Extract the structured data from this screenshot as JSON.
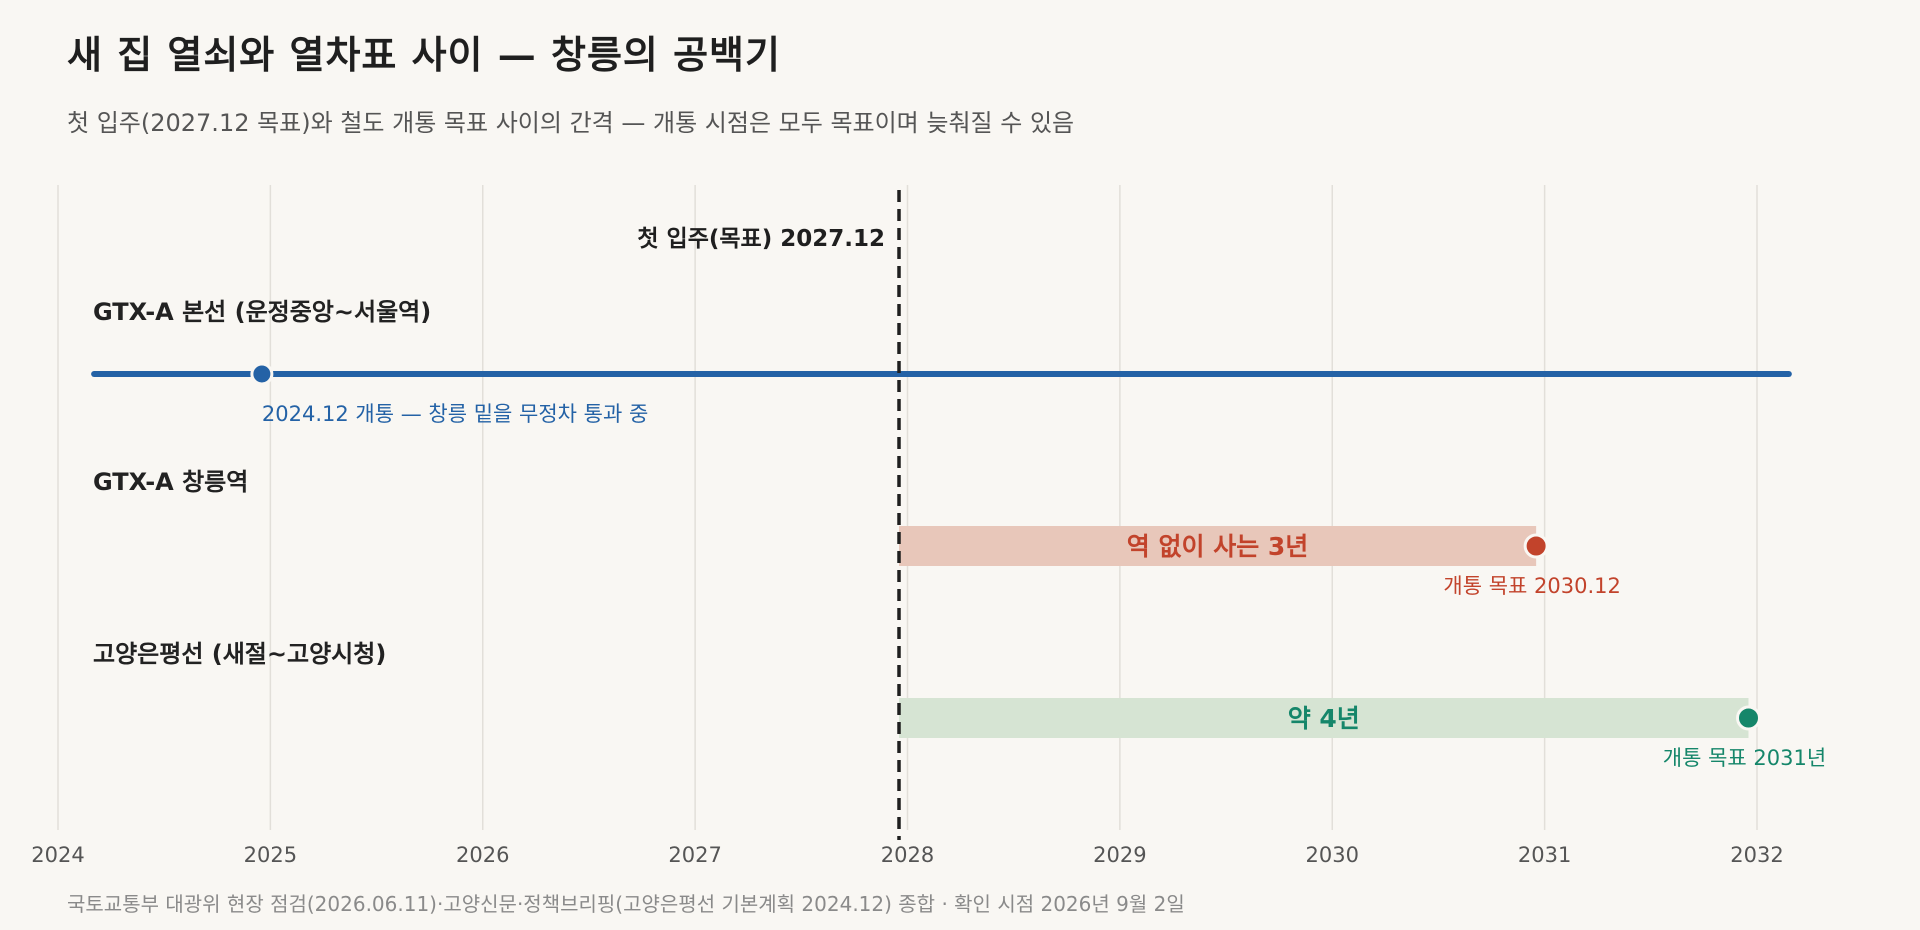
{
  "title": "새 집 열쇠와 열차표 사이 — 창릉의 공백기",
  "subtitle": "첫 입주(2027.12 목표)와 철도 개통 목표 사이의 간격 — 개통 시점은 모두 목표이며 늦춰질 수 있음",
  "source": "국토교통부 대광위 현장 점검(2026.06.11)·고양신문·정책브리핑(고양은평선 기본계획 2024.12) 종합 · 확인 시점 2026년 9월 2일",
  "chart_data": {
    "type": "timeline",
    "xlim": [
      2024,
      2032.2
    ],
    "xticks": [
      2024,
      2025,
      2026,
      2027,
      2028,
      2029,
      2030,
      2031,
      2032
    ],
    "grid": "vertical",
    "marker": {
      "x": 2027.96,
      "label": "첫 입주(목표) 2027.12"
    },
    "rows": [
      {
        "label": "GTX-A 본선 (운정중앙~서울역)",
        "kind": "line",
        "x_start": 2024.17,
        "x_end": 2032.15,
        "point": 2024.96,
        "annotation": "2024.12 개통 — 창릉 밑을 무정차 통과 중",
        "color": "#2462a6"
      },
      {
        "label": "GTX-A 창릉역",
        "kind": "gap",
        "x_start": 2027.96,
        "x_end": 2030.96,
        "gap_label": "역 없이 사는 3년",
        "annotation": "개통 목표 2030.12",
        "color": "#c2432b",
        "fill": "#e8c7ba"
      },
      {
        "label": "고양은평선 (새절~고양시청)",
        "kind": "gap",
        "x_start": 2027.96,
        "x_end": 2031.96,
        "gap_label": "약 4년",
        "annotation": "개통 목표 2031년",
        "color": "#15866a",
        "fill": "#d6e4d3"
      }
    ]
  }
}
